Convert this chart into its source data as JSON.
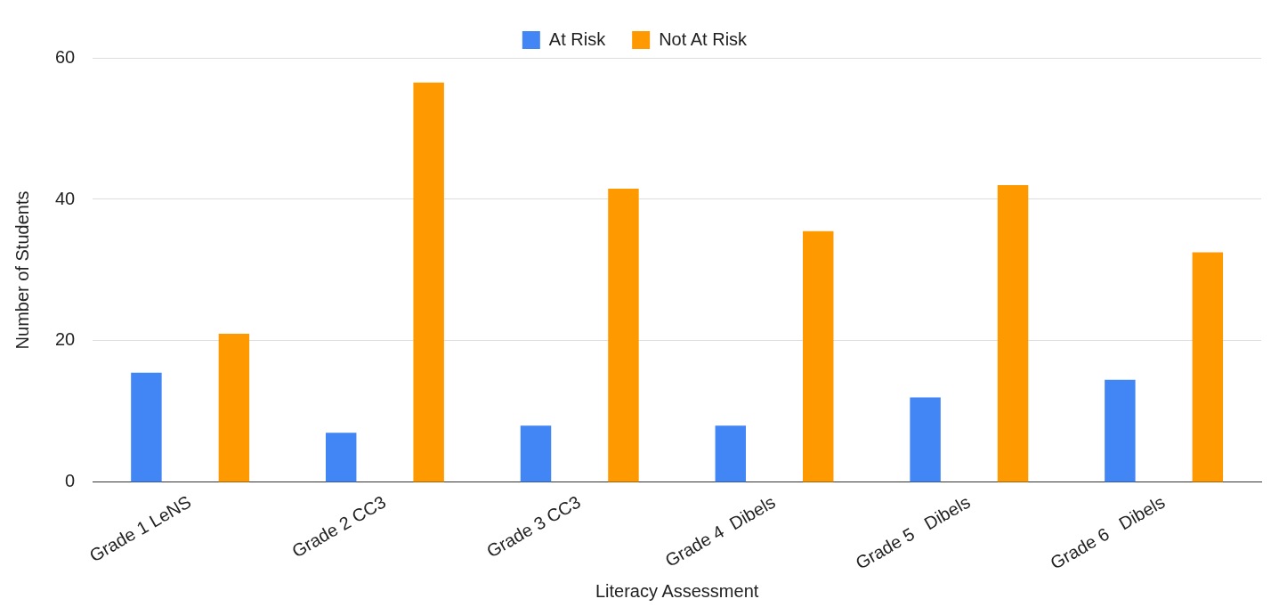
{
  "chart_data": {
    "type": "bar",
    "xlabel": "Literacy Assessment",
    "ylabel": "Number of Students",
    "categories": [
      "Grade 1 LeNS",
      "Grade 2 CC3",
      "Grade 3 CC3",
      "Grade 4  Dibels",
      "Grade 5   Dibels",
      "Grade 6   Dibels"
    ],
    "series": [
      {
        "name": "At Risk",
        "color": "#4285f4",
        "values": [
          15.5,
          7,
          8,
          8,
          12,
          14.5
        ]
      },
      {
        "name": "Not At Risk",
        "color": "#ff9900",
        "values": [
          21,
          56.5,
          41.5,
          35.5,
          42,
          32.5
        ]
      }
    ],
    "ylim": [
      0,
      60
    ],
    "yticks": [
      0,
      20,
      40,
      60
    ],
    "grid": "y",
    "legend": "top"
  }
}
